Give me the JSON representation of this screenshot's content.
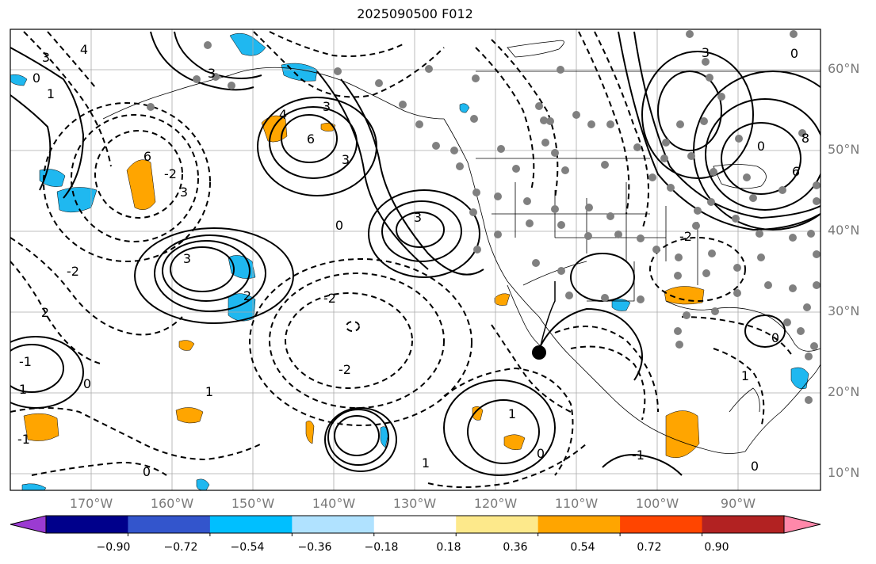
{
  "title": "2025090500 F012",
  "lat_labels": [
    "60°N",
    "50°N",
    "40°N",
    "30°N",
    "20°N",
    "10°N"
  ],
  "lon_labels": [
    "170°W",
    "160°W",
    "150°W",
    "140°W",
    "130°W",
    "120°W",
    "110°W",
    "100°W",
    "90°W"
  ],
  "contour_labels": [
    {
      "text": "4",
      "id": "c1"
    },
    {
      "text": "3",
      "id": "c2"
    },
    {
      "text": "0",
      "id": "c3"
    },
    {
      "text": "1",
      "id": "c4"
    },
    {
      "text": "6",
      "id": "c5"
    },
    {
      "text": "3",
      "id": "c6"
    },
    {
      "text": "3",
      "id": "c7"
    },
    {
      "text": "3",
      "id": "c8"
    },
    {
      "text": "6",
      "id": "c9"
    },
    {
      "text": "4",
      "id": "c10"
    },
    {
      "text": "3",
      "id": "c11"
    },
    {
      "text": "-2",
      "id": "c12"
    },
    {
      "text": "-2",
      "id": "c13"
    },
    {
      "text": "2",
      "id": "c14"
    },
    {
      "text": "-2",
      "id": "c15"
    },
    {
      "text": "-2",
      "id": "c16"
    },
    {
      "text": "0",
      "id": "c17"
    },
    {
      "text": "2",
      "id": "c18"
    },
    {
      "text": "-1",
      "id": "c19"
    },
    {
      "text": "0",
      "id": "c20"
    },
    {
      "text": "1",
      "id": "c21"
    },
    {
      "text": "0",
      "id": "c22"
    },
    {
      "text": "1",
      "id": "c23"
    },
    {
      "text": "-1",
      "id": "c24"
    },
    {
      "text": "1",
      "id": "c25"
    },
    {
      "text": "0",
      "id": "c26"
    },
    {
      "text": "3",
      "id": "c27"
    },
    {
      "text": "3",
      "id": "c28"
    },
    {
      "text": "0",
      "id": "c29"
    },
    {
      "text": "8",
      "id": "c30"
    },
    {
      "text": "6",
      "id": "c31"
    },
    {
      "text": "3",
      "id": "c32"
    },
    {
      "text": "0",
      "id": "c33"
    },
    {
      "text": "-2",
      "id": "c34"
    },
    {
      "text": "0",
      "id": "c35"
    },
    {
      "text": "1",
      "id": "c36"
    },
    {
      "text": "-1",
      "id": "c37"
    },
    {
      "text": "0",
      "id": "c38"
    },
    {
      "text": "1",
      "id": "c39"
    }
  ],
  "colorbar": {
    "ticks": [
      "−0.90",
      "−0.72",
      "−0.54",
      "−0.36",
      "−0.18",
      "0.18",
      "0.36",
      "0.54",
      "0.72",
      "0.90"
    ],
    "colors": [
      "#9b3bd2",
      "#00008b",
      "#3355cc",
      "#00bfff",
      "#b0e2ff",
      "#ffffff",
      "#fde98b",
      "#ffa500",
      "#ff4500",
      "#b22222",
      "#ff88aa"
    ]
  },
  "colors": {
    "positive_shading": "#ffa500",
    "negative_shading": "#1fb8f0",
    "station_dot": "#808080",
    "contour": "#000000"
  }
}
